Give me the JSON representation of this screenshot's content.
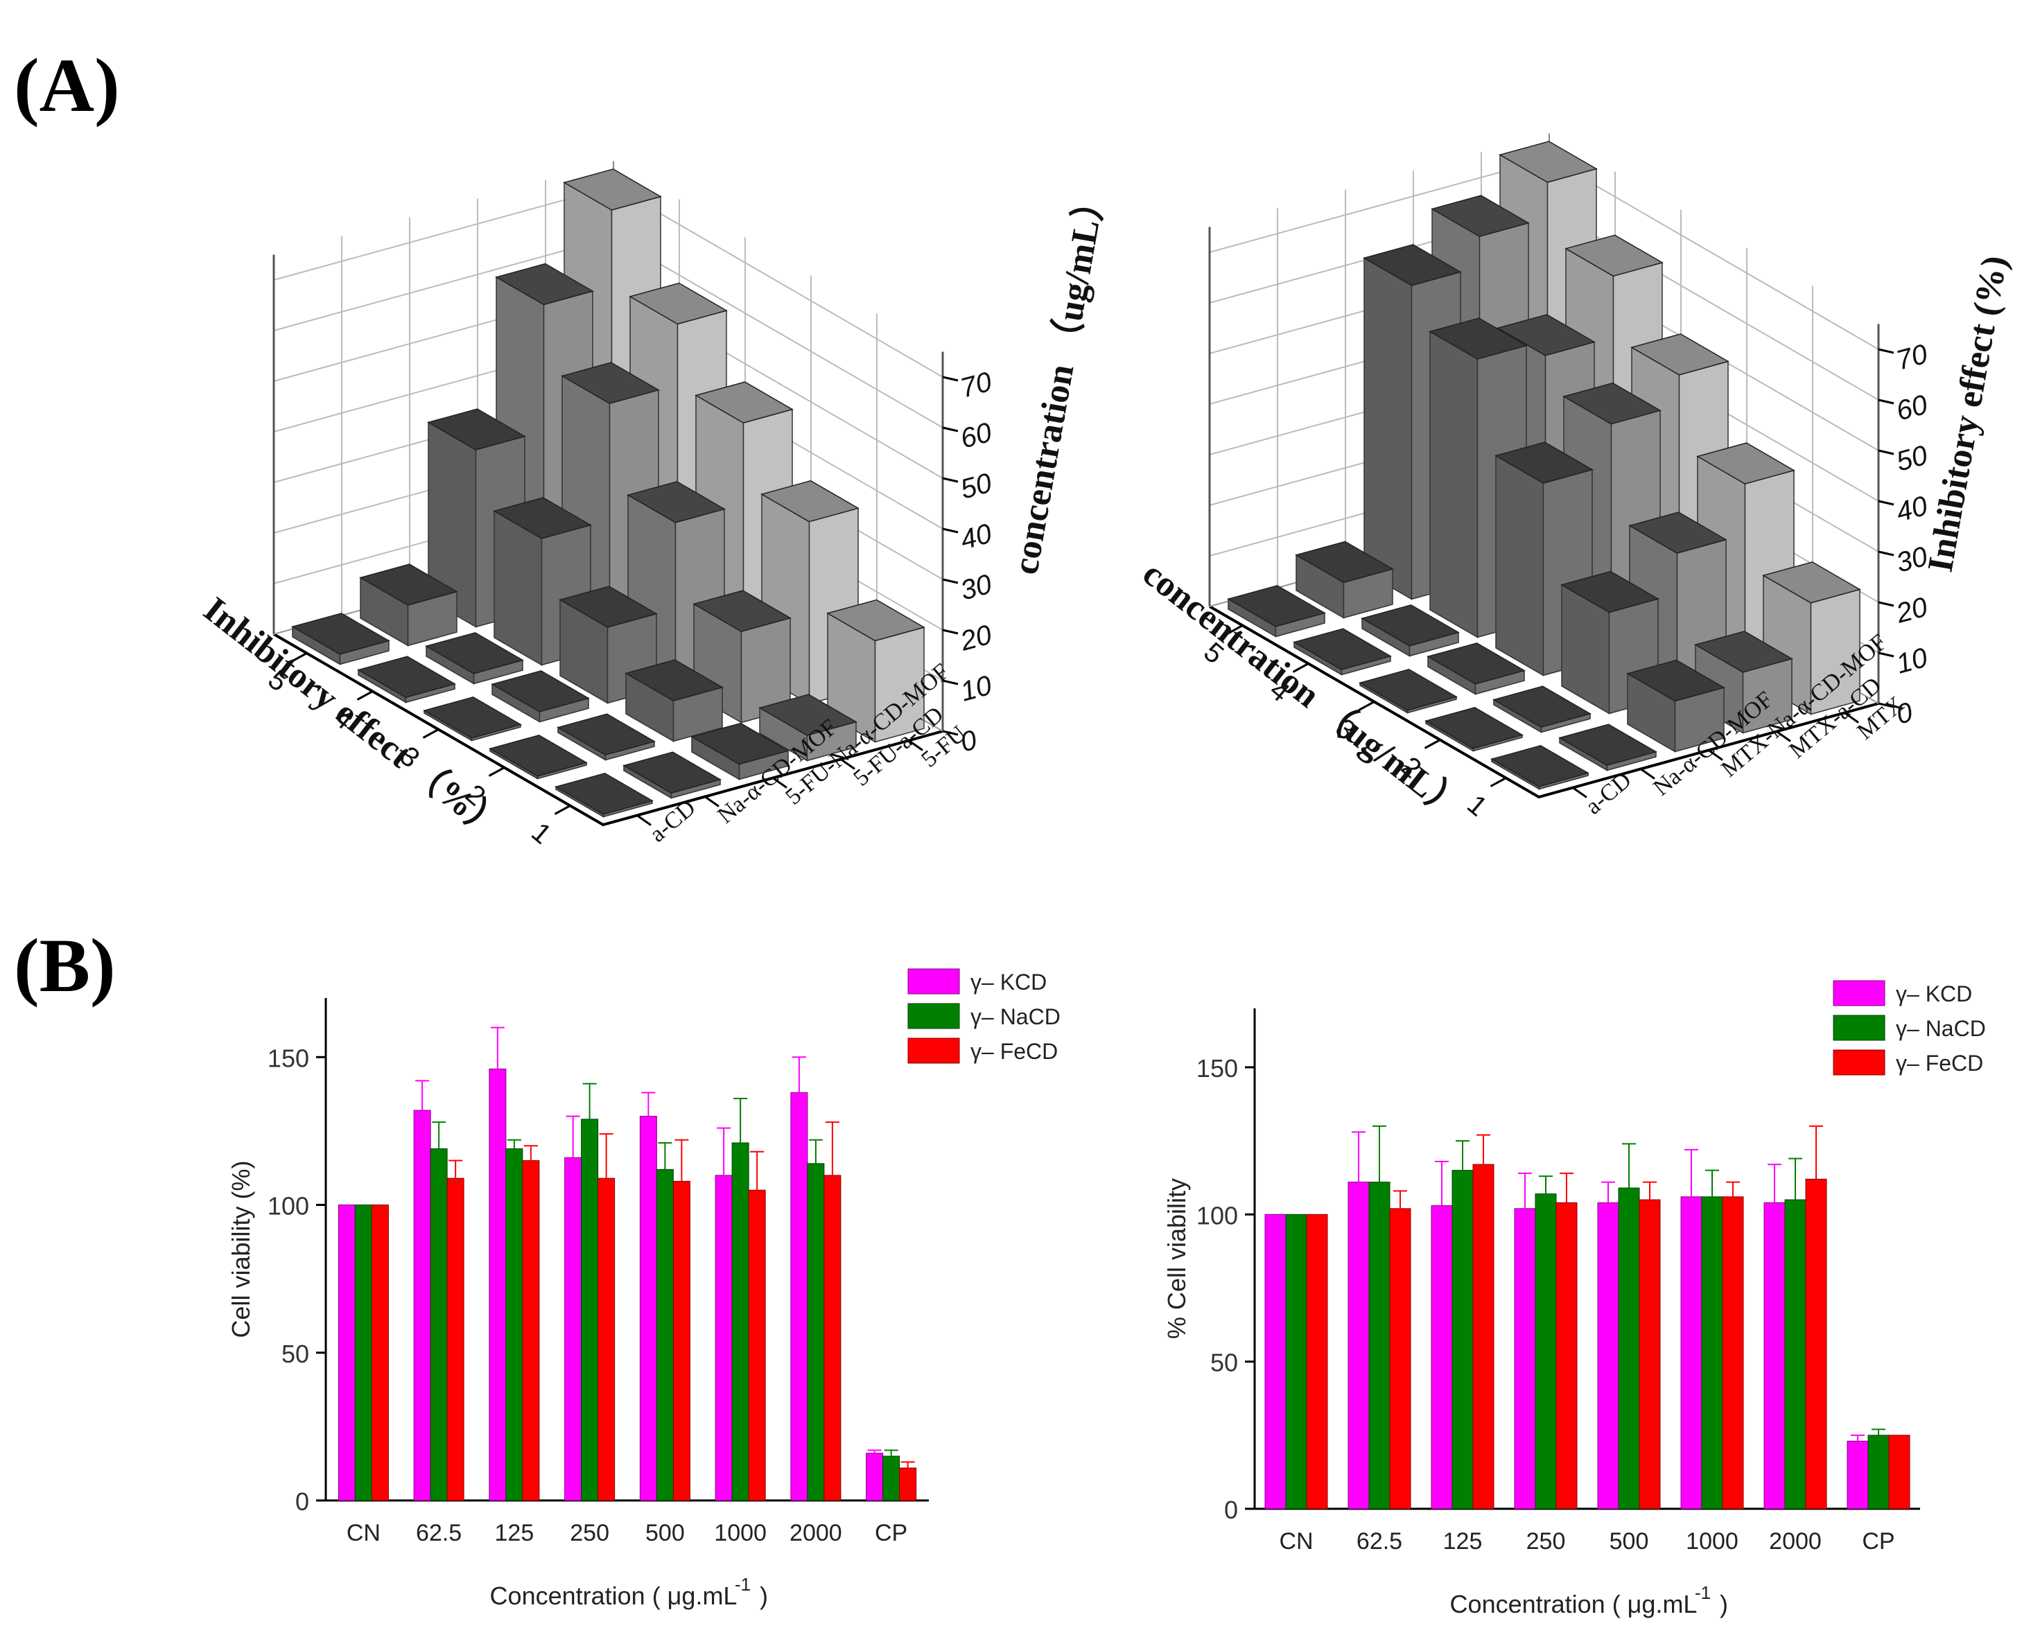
{
  "panels": {
    "a_label": "(A)",
    "b_label": "(B)"
  },
  "chart_data": [
    {
      "type": "bar3d",
      "panel": "A-left",
      "zlabel": "concentration （ug/mL）",
      "zticks": [
        "0",
        "10",
        "20",
        "30",
        "40",
        "50",
        "60",
        "70"
      ],
      "depth_axis_label": "Inhibitory effect （%）",
      "depth_ticks": [
        "1",
        "2",
        "3",
        "4",
        "5"
      ],
      "series_labels": [
        "a-CD",
        "Na-α-CD-MOF",
        "5-FU-Na-α-CD-MOF",
        "5-FU-a-CD",
        "5-FU"
      ],
      "values": [
        [
          0.5,
          0.5,
          0.5,
          1,
          2
        ],
        [
          1,
          1,
          2,
          2,
          8
        ],
        [
          3,
          8,
          15,
          25,
          35
        ],
        [
          5,
          18,
          32,
          48,
          60
        ],
        [
          20,
          36,
          48,
          60,
          75
        ]
      ]
    },
    {
      "type": "bar3d",
      "panel": "A-right",
      "zlabel": "Inhibitory effect (%)",
      "zticks": [
        "0",
        "10",
        "20",
        "30",
        "40",
        "50",
        "60",
        "70"
      ],
      "depth_axis_label": "concentration （ug/mL）",
      "depth_ticks": [
        "1",
        "2",
        "3",
        "4",
        "5"
      ],
      "series_labels": [
        "a-CD",
        "Na-α-CD-MOF",
        "MTX-Na-α-CD-MOF",
        "MTX-a-CD",
        "MTX"
      ],
      "values": [
        [
          0.5,
          0.5,
          0.5,
          1,
          2
        ],
        [
          1,
          1,
          2,
          2,
          7
        ],
        [
          10,
          20,
          38,
          55,
          62
        ],
        [
          12,
          28,
          46,
          52,
          68
        ],
        [
          22,
          38,
          52,
          64,
          75
        ]
      ]
    },
    {
      "type": "bar",
      "panel": "B-left",
      "ylabel": "Cell viability (%)",
      "xlabel": "Concentration ( μg.mL",
      "xlabel_sup": "-1",
      "xlabel_end": ")",
      "ylim": [
        0,
        170
      ],
      "yticks": [
        0,
        50,
        100,
        150
      ],
      "categories": [
        "CN",
        "62.5",
        "125",
        "250",
        "500",
        "1000",
        "2000",
        "CP"
      ],
      "series": [
        {
          "name": "γ– KCD",
          "color": "#ff00ff",
          "values": [
            100,
            132,
            146,
            116,
            130,
            110,
            138,
            16
          ],
          "errors": [
            0,
            10,
            14,
            14,
            8,
            16,
            12,
            1
          ]
        },
        {
          "name": "γ– NaCD",
          "color": "#008000",
          "values": [
            100,
            119,
            119,
            129,
            112,
            121,
            114,
            15
          ],
          "errors": [
            0,
            9,
            3,
            12,
            9,
            15,
            8,
            2
          ]
        },
        {
          "name": "γ– FeCD",
          "color": "#ff0000",
          "values": [
            100,
            109,
            115,
            109,
            108,
            105,
            110,
            11
          ],
          "errors": [
            0,
            6,
            5,
            15,
            14,
            13,
            18,
            2
          ]
        }
      ]
    },
    {
      "type": "bar",
      "panel": "B-right",
      "ylabel": "% Cell viability",
      "xlabel": "Concentration ( μg.mL",
      "xlabel_sup": "-1",
      "xlabel_end": ")",
      "ylim": [
        0,
        170
      ],
      "yticks": [
        0,
        50,
        100,
        150
      ],
      "categories": [
        "CN",
        "62.5",
        "125",
        "250",
        "500",
        "1000",
        "2000",
        "CP"
      ],
      "series": [
        {
          "name": "γ– KCD",
          "color": "#ff00ff",
          "values": [
            100,
            111,
            103,
            102,
            104,
            106,
            104,
            23
          ],
          "errors": [
            0,
            17,
            15,
            12,
            7,
            16,
            13,
            2
          ]
        },
        {
          "name": "γ– NaCD",
          "color": "#008000",
          "values": [
            100,
            111,
            115,
            107,
            109,
            106,
            105,
            25
          ],
          "errors": [
            0,
            19,
            10,
            6,
            15,
            9,
            14,
            2
          ]
        },
        {
          "name": "γ– FeCD",
          "color": "#ff0000",
          "values": [
            100,
            102,
            117,
            104,
            105,
            106,
            112,
            25
          ],
          "errors": [
            0,
            6,
            10,
            10,
            6,
            5,
            18,
            0
          ]
        }
      ]
    }
  ]
}
